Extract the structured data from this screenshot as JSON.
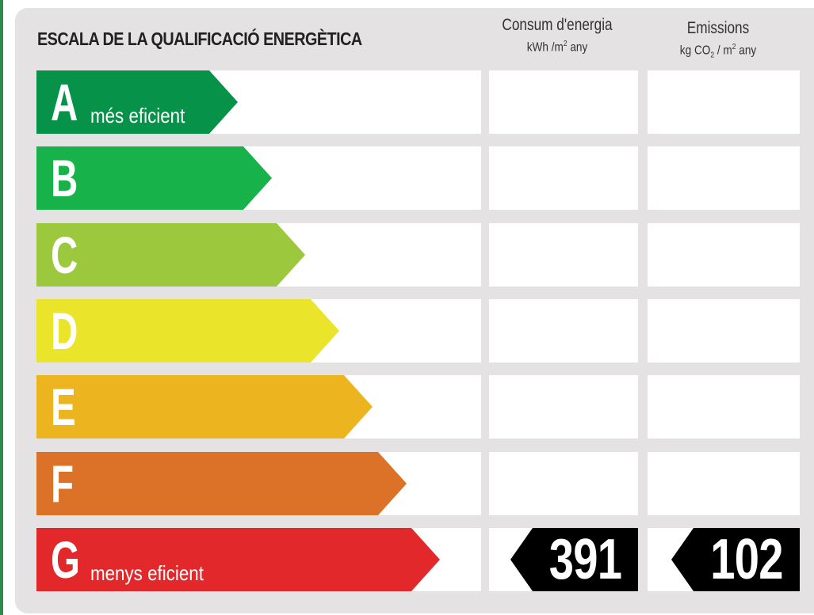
{
  "title": "ESCALA DE LA QUALIFICACIÓ ENERGÈTICA",
  "energy_header": {
    "title": "Consum d'energia",
    "unit_prefix": "kWh /m",
    "unit_sup": "2",
    "unit_suffix": " any"
  },
  "emissions_header": {
    "title": "Emissions",
    "unit_prefix": "kg CO",
    "unit_sub": "2",
    "unit_mid": " / m",
    "unit_sup": "2",
    "unit_suffix": " any"
  },
  "classes": [
    {
      "letter": "A",
      "caption": "més eficient",
      "color": "#07924a"
    },
    {
      "letter": "B",
      "caption": "",
      "color": "#18b24b"
    },
    {
      "letter": "C",
      "caption": "",
      "color": "#9bc83c"
    },
    {
      "letter": "D",
      "caption": "",
      "color": "#eae52a"
    },
    {
      "letter": "E",
      "caption": "",
      "color": "#ecb51f"
    },
    {
      "letter": "F",
      "caption": "",
      "color": "#dc7228"
    },
    {
      "letter": "G",
      "caption": "menys eficient",
      "color": "#e2282b"
    }
  ],
  "rating": {
    "class": "G",
    "energy_value": "391",
    "emissions_value": "102",
    "badge_color": "#000000"
  }
}
